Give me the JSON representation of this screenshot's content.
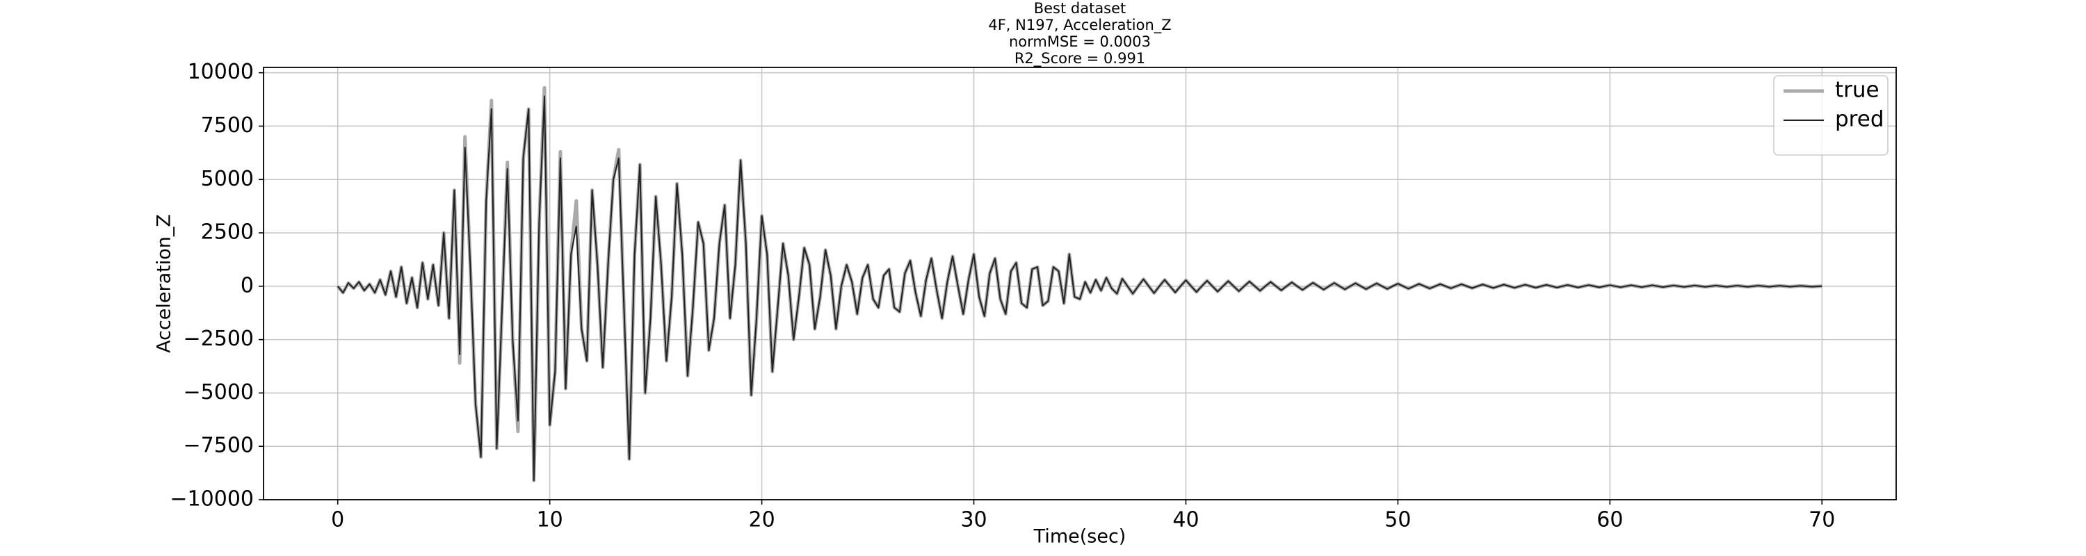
{
  "chart_data": {
    "type": "line",
    "title": [
      "Best dataset",
      "4F, N197, Acceleration_Z",
      "normMSE = 0.0003",
      "R2_Score = 0.991"
    ],
    "x_label": "Time(sec)",
    "y_label": "Acceleration_Z",
    "xlim": [
      -3.5,
      73.5
    ],
    "ylim": [
      -10000,
      10250
    ],
    "xticks": [
      0,
      10,
      20,
      30,
      40,
      50,
      60,
      70
    ],
    "yticks": [
      {
        "value": -10000,
        "label": "−10000"
      },
      {
        "value": -7500,
        "label": "−7500"
      },
      {
        "value": -5000,
        "label": "−5000"
      },
      {
        "value": -2500,
        "label": "−2500"
      },
      0,
      2500,
      5000,
      7500,
      10000
    ],
    "grid": true,
    "legend": "upper right",
    "x": [
      0,
      0.25,
      0.5,
      0.75,
      1,
      1.25,
      1.5,
      1.75,
      2,
      2.25,
      2.5,
      2.75,
      3,
      3.25,
      3.5,
      3.75,
      4,
      4.25,
      4.5,
      4.75,
      5,
      5.25,
      5.5,
      5.75,
      6,
      6.25,
      6.5,
      6.75,
      7,
      7.25,
      7.5,
      7.75,
      8,
      8.25,
      8.5,
      8.75,
      9,
      9.25,
      9.5,
      9.75,
      10,
      10.25,
      10.5,
      10.75,
      11,
      11.25,
      11.5,
      11.75,
      12,
      12.25,
      12.5,
      12.75,
      13,
      13.25,
      13.5,
      13.75,
      14,
      14.25,
      14.5,
      14.75,
      15,
      15.25,
      15.5,
      15.75,
      16,
      16.25,
      16.5,
      16.75,
      17,
      17.25,
      17.5,
      17.75,
      18,
      18.25,
      18.5,
      18.75,
      19,
      19.25,
      19.5,
      19.75,
      20,
      20.25,
      20.5,
      20.75,
      21,
      21.25,
      21.5,
      21.75,
      22,
      22.25,
      22.5,
      22.75,
      23,
      23.25,
      23.5,
      23.75,
      24,
      24.25,
      24.5,
      24.75,
      25,
      25.25,
      25.5,
      25.75,
      26,
      26.25,
      26.5,
      26.75,
      27,
      27.25,
      27.5,
      27.75,
      28,
      28.25,
      28.5,
      28.75,
      29,
      29.25,
      29.5,
      29.75,
      30,
      30.25,
      30.5,
      30.75,
      31,
      31.25,
      31.5,
      31.75,
      32,
      32.25,
      32.5,
      32.75,
      33,
      33.25,
      33.5,
      33.75,
      34,
      34.25,
      34.5,
      34.75,
      35,
      35.25,
      35.5,
      35.75,
      36,
      36.25,
      36.5,
      36.75,
      37,
      37.25,
      37.5,
      37.75,
      38,
      38.25,
      38.5,
      38.75,
      39,
      39.25,
      39.5,
      39.75,
      40,
      40.25,
      40.5,
      40.75,
      41,
      41.25,
      41.5,
      41.75,
      42,
      42.25,
      42.5,
      42.75,
      43,
      43.25,
      43.5,
      43.75,
      44,
      44.25,
      44.5,
      44.75,
      45,
      45.25,
      45.5,
      45.75,
      46,
      46.25,
      46.5,
      46.75,
      47,
      47.25,
      47.5,
      47.75,
      48,
      48.25,
      48.5,
      48.75,
      49,
      49.25,
      49.5,
      49.75,
      50,
      50.5,
      51,
      51.5,
      52,
      52.5,
      53,
      53.5,
      54,
      54.5,
      55,
      55.5,
      56,
      56.5,
      57,
      57.5,
      58,
      58.5,
      59,
      59.5,
      60,
      60.5,
      61,
      61.5,
      62,
      62.5,
      63,
      63.5,
      64,
      64.5,
      65,
      65.5,
      66,
      66.5,
      67,
      67.5,
      68,
      68.5,
      69,
      69.5,
      70
    ],
    "series": [
      {
        "name": "true",
        "color": "#aaaaaa",
        "values": [
          0,
          -300,
          150,
          -100,
          200,
          -200,
          100,
          -300,
          300,
          -400,
          700,
          -500,
          900,
          -800,
          400,
          -1000,
          1100,
          -600,
          1000,
          -900,
          2500,
          -1500,
          4500,
          -3600,
          7000,
          1000,
          -5500,
          -8000,
          4000,
          8700,
          -7600,
          -1000,
          5800,
          -2500,
          -6800,
          6000,
          8300,
          -9100,
          3000,
          9300,
          -6500,
          -4000,
          6300,
          -4800,
          1500,
          4000,
          -2000,
          -3500,
          4500,
          1000,
          -3800,
          1000,
          5000,
          6400,
          -1000,
          -8100,
          1500,
          5700,
          -5000,
          -1500,
          4200,
          1000,
          -3500,
          -500,
          4800,
          1500,
          -4200,
          -1000,
          3000,
          2000,
          -3000,
          -1500,
          2000,
          3800,
          -1500,
          1000,
          5900,
          2000,
          -5100,
          -1500,
          3300,
          1500,
          -4000,
          -1000,
          2000,
          500,
          -2500,
          -500,
          1800,
          1000,
          -2000,
          -500,
          1700,
          500,
          -2000,
          0,
          1000,
          200,
          -1300,
          400,
          1000,
          -600,
          -1000,
          500,
          800,
          -1000,
          -1200,
          600,
          1200,
          -300,
          -1400,
          300,
          1300,
          -200,
          -1500,
          200,
          1400,
          0,
          -1300,
          300,
          1500,
          -500,
          -1400,
          600,
          1300,
          -600,
          -1300,
          700,
          1100,
          -800,
          -1000,
          800,
          900,
          -900,
          -700,
          900,
          700,
          -800,
          1500,
          -500,
          -600,
          200,
          -300,
          300,
          -200,
          400,
          -100,
          -350,
          350,
          0,
          -350,
          0,
          330,
          0,
          -320,
          0,
          300,
          0,
          -290,
          0,
          280,
          0,
          -270,
          0,
          260,
          0,
          -250,
          0,
          240,
          0,
          -230,
          0,
          220,
          0,
          -210,
          0,
          200,
          0,
          -190,
          0,
          180,
          0,
          -170,
          0,
          160,
          0,
          -155,
          0,
          150,
          0,
          -145,
          0,
          140,
          0,
          -135,
          0,
          130,
          0,
          -125,
          0,
          120,
          -115,
          110,
          -105,
          100,
          -96,
          92,
          -88,
          84,
          -80,
          76,
          -73,
          70,
          -67,
          64,
          -61,
          58,
          -56,
          54,
          -52,
          50,
          -48,
          46,
          -44,
          42,
          -40,
          38,
          -36,
          34,
          -32,
          30,
          -29,
          28,
          -27,
          26,
          -25,
          24,
          -23,
          22,
          -21,
          0
        ]
      },
      {
        "name": "pred",
        "color": "#222222",
        "values": [
          0,
          -300,
          150,
          -100,
          200,
          -200,
          100,
          -300,
          300,
          -400,
          700,
          -500,
          900,
          -800,
          400,
          -1000,
          1100,
          -600,
          1000,
          -900,
          2500,
          -1500,
          4500,
          -3200,
          6500,
          1000,
          -5500,
          -8000,
          4000,
          8300,
          -7600,
          -1000,
          5500,
          -2500,
          -6300,
          6000,
          8300,
          -9100,
          3000,
          8900,
          -6500,
          -4000,
          6000,
          -4800,
          1500,
          2800,
          -2000,
          -3500,
          4500,
          1000,
          -3800,
          1000,
          5000,
          6000,
          -1000,
          -8100,
          1500,
          5700,
          -5000,
          -1500,
          4200,
          1000,
          -3500,
          -500,
          4800,
          1500,
          -4200,
          -1000,
          3000,
          2000,
          -3000,
          -1500,
          2000,
          3800,
          -1500,
          1000,
          5900,
          2000,
          -5100,
          -1500,
          3300,
          1500,
          -4000,
          -1000,
          2000,
          500,
          -2500,
          -500,
          1800,
          1000,
          -2000,
          -500,
          1700,
          500,
          -2000,
          0,
          1000,
          200,
          -1300,
          400,
          1000,
          -600,
          -1000,
          500,
          800,
          -1000,
          -1200,
          600,
          1200,
          -300,
          -1400,
          300,
          1300,
          -200,
          -1500,
          200,
          1400,
          0,
          -1300,
          300,
          1500,
          -500,
          -1400,
          600,
          1300,
          -600,
          -1300,
          700,
          1100,
          -800,
          -1000,
          800,
          900,
          -900,
          -700,
          900,
          700,
          -800,
          1500,
          -500,
          -600,
          200,
          -300,
          300,
          -200,
          400,
          -100,
          -350,
          350,
          0,
          -350,
          0,
          330,
          0,
          -320,
          0,
          300,
          0,
          -290,
          0,
          280,
          0,
          -270,
          0,
          260,
          0,
          -250,
          0,
          240,
          0,
          -230,
          0,
          220,
          0,
          -210,
          0,
          200,
          0,
          -190,
          0,
          180,
          0,
          -170,
          0,
          160,
          0,
          -155,
          0,
          150,
          0,
          -145,
          0,
          140,
          0,
          -135,
          0,
          130,
          0,
          -125,
          0,
          120,
          -115,
          110,
          -105,
          100,
          -96,
          92,
          -88,
          84,
          -80,
          76,
          -73,
          70,
          -67,
          64,
          -61,
          58,
          -56,
          54,
          -52,
          50,
          -48,
          46,
          -44,
          42,
          -40,
          38,
          -36,
          34,
          -32,
          30,
          -29,
          28,
          -27,
          26,
          -25,
          24,
          -23,
          22,
          -21,
          0
        ]
      }
    ]
  }
}
